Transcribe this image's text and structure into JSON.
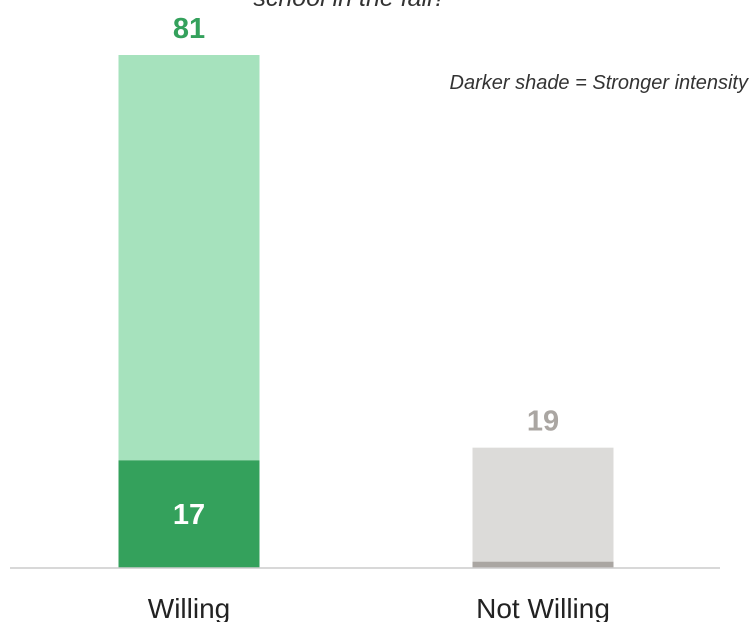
{
  "chart_data": {
    "type": "bar",
    "title": "school in the fall?",
    "note": "Darker shade = Stronger intensity",
    "categories": [
      "Willing",
      "Not Willing"
    ],
    "series": [
      {
        "values": [
          17,
          1
        ]
      },
      {
        "values": [
          64,
          18
        ]
      }
    ],
    "totals": [
      81,
      19
    ],
    "segment_labels": [
      "17",
      ""
    ],
    "ylim": [
      0,
      81
    ],
    "grid": false,
    "colors": {
      "Willing": {
        "strong": "#34a15c",
        "light": "#a6e2bd",
        "label": "#34a15c"
      },
      "Not Willing": {
        "strong": "#aaa6a2",
        "light": "#dcdbd9",
        "label": "#aaa6a2"
      },
      "baseline": "#cccccc"
    }
  }
}
